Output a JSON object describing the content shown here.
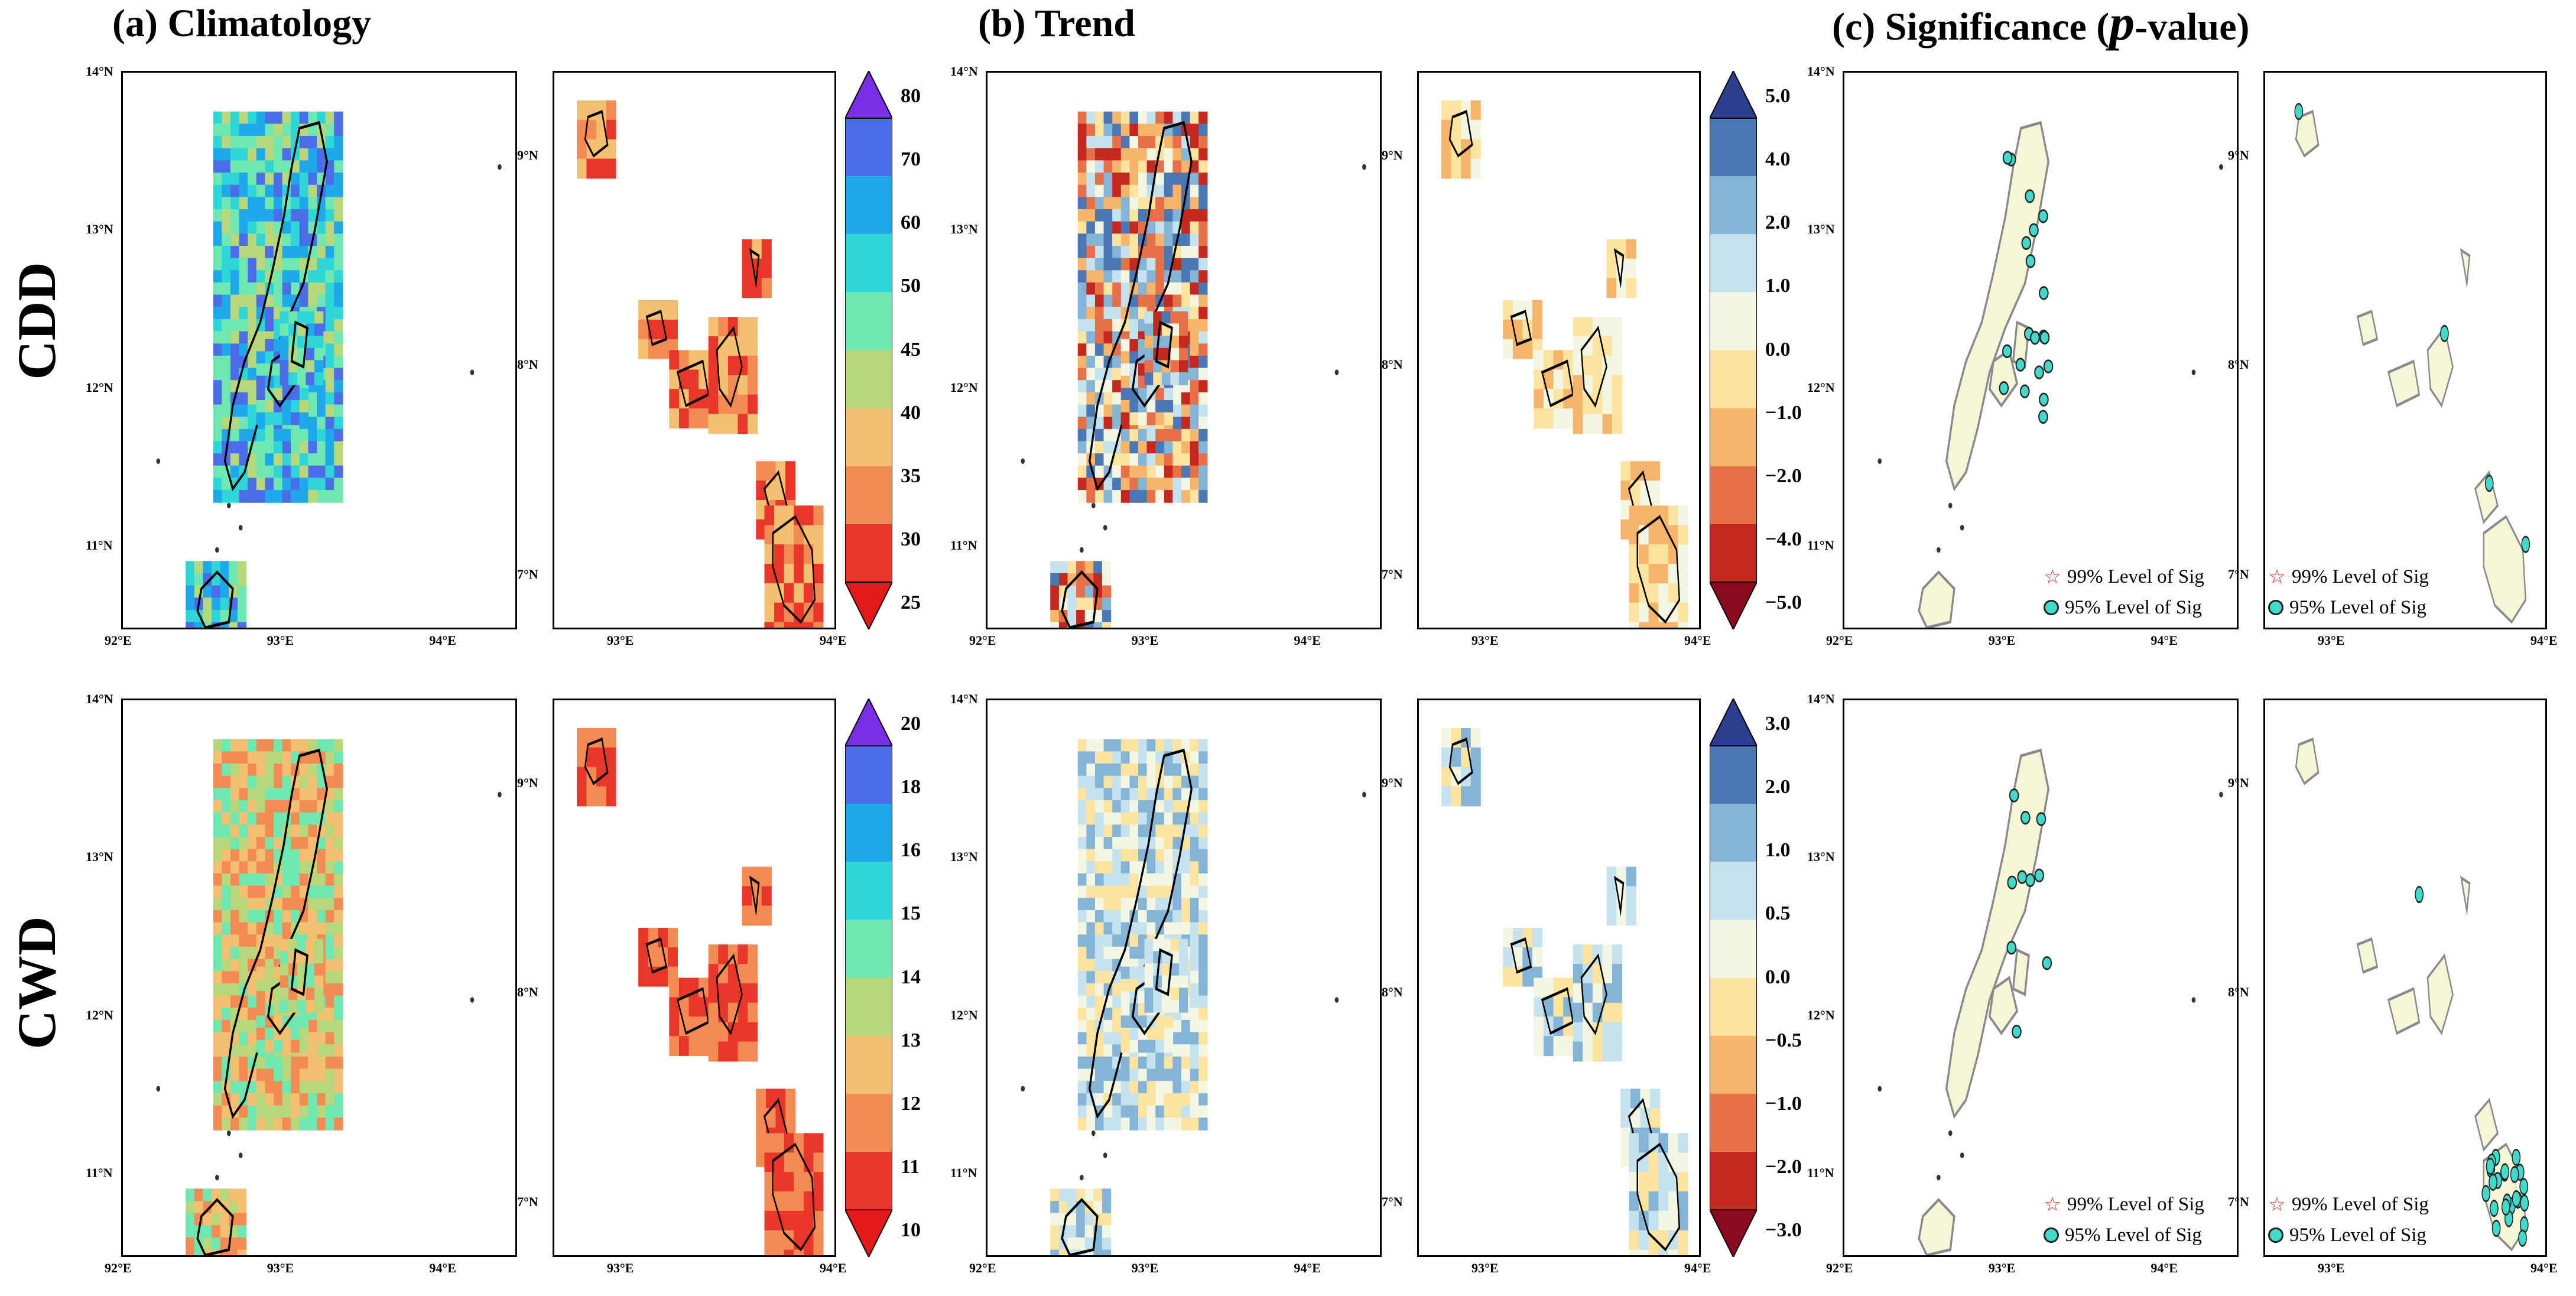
{
  "column_titles": {
    "a": "(a) Climatology",
    "b": "(b) Trend",
    "c_prefix": "(c) Significance (",
    "c_italic": "p",
    "c_suffix": "-value)"
  },
  "row_labels": [
    "CDD",
    "CWD"
  ],
  "map_ticks": {
    "lat_large": [
      "14°N",
      "13°N",
      "12°N",
      "11°N"
    ],
    "lon_large": [
      "92°E",
      "93°E",
      "94°E"
    ],
    "lat_small": [
      "9°N",
      "8°N",
      "7°N"
    ],
    "lon_small": [
      "93°E",
      "94°E"
    ]
  },
  "colorbars": {
    "cdd_climatology": {
      "labels": [
        "80",
        "70",
        "60",
        "50",
        "45",
        "40",
        "35",
        "30",
        "25"
      ],
      "colors": [
        "#7a2ee6",
        "#4b6ee8",
        "#1fa8ec",
        "#2ed6d8",
        "#6ee8b0",
        "#b8d67a",
        "#f2c070",
        "#f58b54",
        "#e8362b",
        "#e31a1c"
      ]
    },
    "cdd_trend": {
      "labels": [
        "5.0",
        "4.0",
        "2.0",
        "1.0",
        "0.0",
        "−1.0",
        "−2.0",
        "−4.0",
        "−5.0"
      ],
      "colors": [
        "#2b3f8e",
        "#4a78b4",
        "#86b4d6",
        "#c6e2ee",
        "#f3f6e2",
        "#fbe4a0",
        "#f6b56a",
        "#e87048",
        "#c5281e",
        "#8a0b1f"
      ]
    },
    "cwd_climatology": {
      "labels": [
        "20",
        "18",
        "16",
        "15",
        "14",
        "13",
        "12",
        "11",
        "10"
      ],
      "colors": [
        "#7a2ee6",
        "#4b6ee8",
        "#1fa8ec",
        "#2ed6d8",
        "#6ee8b0",
        "#b8d67a",
        "#f2c070",
        "#f58b54",
        "#e8362b",
        "#e31a1c"
      ]
    },
    "cwd_trend": {
      "labels": [
        "3.0",
        "2.0",
        "1.0",
        "0.5",
        "0.0",
        "−0.5",
        "−1.0",
        "−2.0",
        "−3.0"
      ],
      "colors": [
        "#2b3f8e",
        "#4a78b4",
        "#86b4d6",
        "#c6e2ee",
        "#f3f6e2",
        "#fbe4a0",
        "#f6b56a",
        "#e87048",
        "#c5281e",
        "#8a0b1f"
      ]
    }
  },
  "legend": {
    "sig99": "99% Level of Sig",
    "sig95": "95% Level of Sig"
  },
  "colors": {
    "significance_fill": "#f6f5d8",
    "significance_outline": "#8a8a8a",
    "sig95_marker": "#40d9cc",
    "sig99_marker": "#e03a28"
  }
}
